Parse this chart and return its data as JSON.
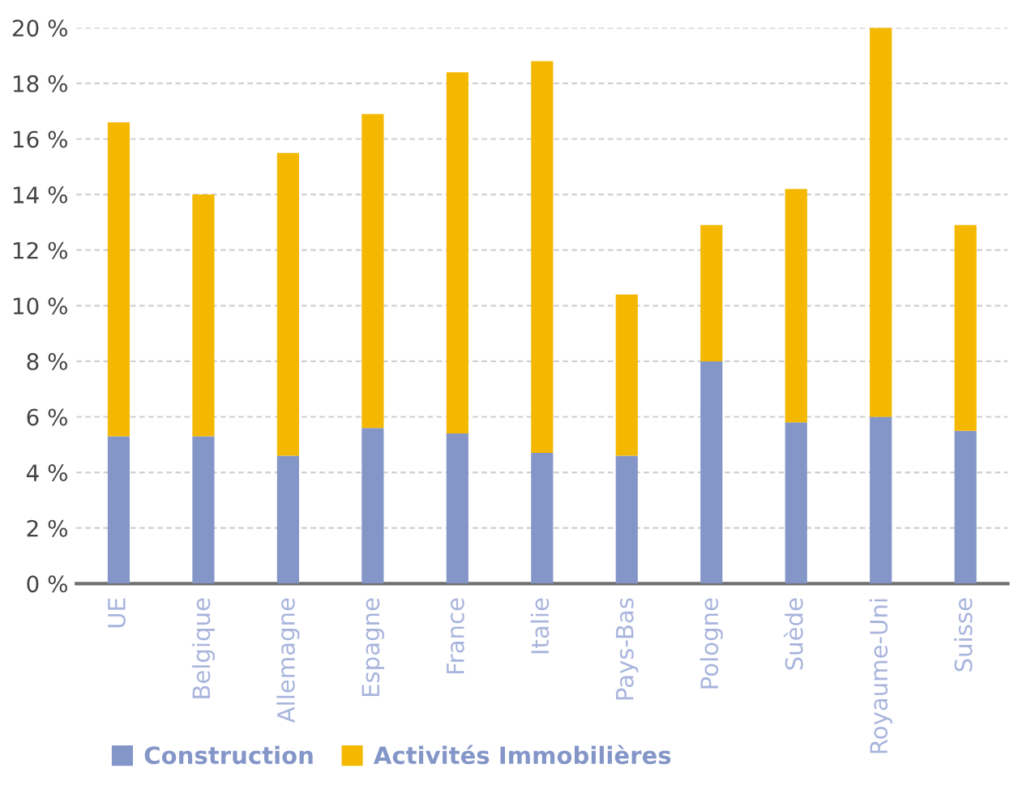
{
  "chart_data": {
    "type": "bar",
    "stacked": true,
    "categories": [
      "UE",
      "Belgique",
      "Allemagne",
      "Espagne",
      "France",
      "Italie",
      "Pays-Bas",
      "Pologne",
      "Suède",
      "Royaume-Uni",
      "Suisse"
    ],
    "series": [
      {
        "name": "Construction",
        "color": "#8496c8",
        "values": [
          5.3,
          5.3,
          4.6,
          5.6,
          5.4,
          4.7,
          4.6,
          8.0,
          5.8,
          6.0,
          5.5
        ]
      },
      {
        "name": "Activités Immobilières",
        "color": "#f5b800",
        "values": [
          11.3,
          8.7,
          10.9,
          11.3,
          13.0,
          14.1,
          5.8,
          4.9,
          8.4,
          14.0,
          7.4
        ]
      }
    ],
    "ylim": [
      0,
      20
    ],
    "yticks": [
      {
        "value": 0,
        "label": "0 %"
      },
      {
        "value": 2,
        "label": "2 %"
      },
      {
        "value": 4,
        "label": "4 %"
      },
      {
        "value": 6,
        "label": "6 %"
      },
      {
        "value": 8,
        "label": "8 %"
      },
      {
        "value": 10,
        "label": "10 %"
      },
      {
        "value": 12,
        "label": "12 %"
      },
      {
        "value": 14,
        "label": "14 %"
      },
      {
        "value": 16,
        "label": "16 %"
      },
      {
        "value": 18,
        "label": "18 %"
      },
      {
        "value": 20,
        "label": "20 %"
      }
    ],
    "grid": "y",
    "legend": "bottom left"
  }
}
